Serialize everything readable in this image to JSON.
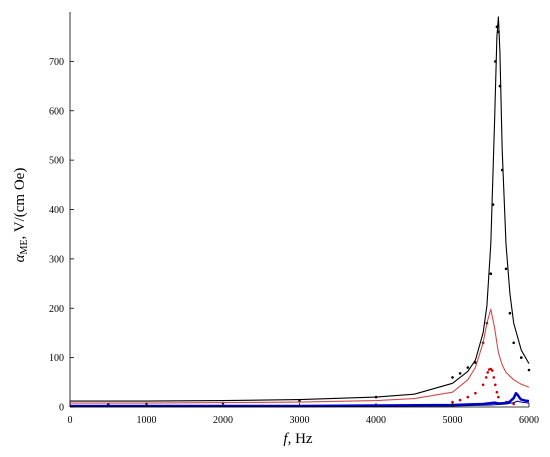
{
  "chart_data": {
    "type": "line",
    "xlabel_sym": "f",
    "xlabel_unit": ", Hz",
    "ylabel_sym": "α",
    "ylabel_sub": "ME",
    "ylabel_unit": ", V/(cm Oe)",
    "xlim": [
      0,
      6000
    ],
    "ylim": [
      0,
      800
    ],
    "xticks": [
      0,
      1000,
      2000,
      3000,
      4000,
      5000,
      6000
    ],
    "yticks": [
      0,
      100,
      200,
      300,
      400,
      500,
      600,
      700
    ],
    "grid": false,
    "series": [
      {
        "style": "line",
        "color": "#000000",
        "x": [
          0,
          1000,
          2000,
          3000,
          4000,
          4500,
          5000,
          5200,
          5300,
          5400,
          5450,
          5500,
          5550,
          5580,
          5600,
          5620,
          5650,
          5700,
          5750,
          5800,
          5900,
          6000
        ],
        "y": [
          12,
          12,
          13,
          15,
          20,
          26,
          48,
          72,
          95,
          150,
          205,
          330,
          580,
          750,
          790,
          720,
          520,
          330,
          230,
          170,
          115,
          88
        ]
      },
      {
        "style": "points",
        "color": "#000000",
        "x": [
          500,
          1000,
          2000,
          3000,
          4000,
          5000,
          5100,
          5200,
          5300,
          5400,
          5450,
          5500,
          5530,
          5560,
          5580,
          5600,
          5620,
          5650,
          5700,
          5750,
          5800,
          5900,
          6000
        ],
        "y": [
          6,
          7,
          8,
          12,
          20,
          60,
          68,
          80,
          90,
          130,
          170,
          270,
          410,
          700,
          770,
          760,
          650,
          480,
          280,
          190,
          130,
          100,
          75
        ]
      },
      {
        "style": "line",
        "color": "#d04a4a",
        "x": [
          0,
          1000,
          2000,
          3000,
          4000,
          4500,
          5000,
          5200,
          5300,
          5400,
          5450,
          5500,
          5550,
          5600,
          5650,
          5700,
          5800,
          5900,
          6000
        ],
        "y": [
          8,
          8,
          9,
          10,
          13,
          17,
          30,
          55,
          80,
          130,
          170,
          198,
          160,
          110,
          85,
          70,
          55,
          46,
          40
        ]
      },
      {
        "style": "points",
        "color": "#cc0000",
        "x": [
          5000,
          5100,
          5200,
          5300,
          5400,
          5440,
          5460,
          5480,
          5500,
          5520,
          5540,
          5560,
          5580,
          5600,
          5700,
          5800
        ],
        "y": [
          10,
          14,
          20,
          28,
          45,
          60,
          70,
          76,
          77,
          74,
          60,
          45,
          30,
          20,
          10,
          6
        ]
      },
      {
        "style": "line",
        "color": "#0000cc",
        "width": 2.5,
        "x": [
          0,
          1000,
          2000,
          3000,
          4000,
          5000,
          5400,
          5500,
          5550,
          5600,
          5700,
          5750,
          5800,
          5830,
          5850,
          5880,
          5900,
          5950,
          6000
        ],
        "y": [
          2,
          2,
          2,
          2,
          3,
          4,
          6,
          8,
          9,
          7,
          8,
          11,
          18,
          28,
          25,
          18,
          15,
          13,
          12
        ]
      },
      {
        "style": "line",
        "color": "#000080",
        "width": 1,
        "x": [
          0,
          1000,
          2000,
          3000,
          4000,
          5000,
          5500,
          5700,
          5800,
          5850,
          5900,
          6000
        ],
        "y": [
          1,
          1,
          1,
          1,
          1,
          2,
          4,
          6,
          9,
          12,
          10,
          8
        ]
      }
    ]
  }
}
